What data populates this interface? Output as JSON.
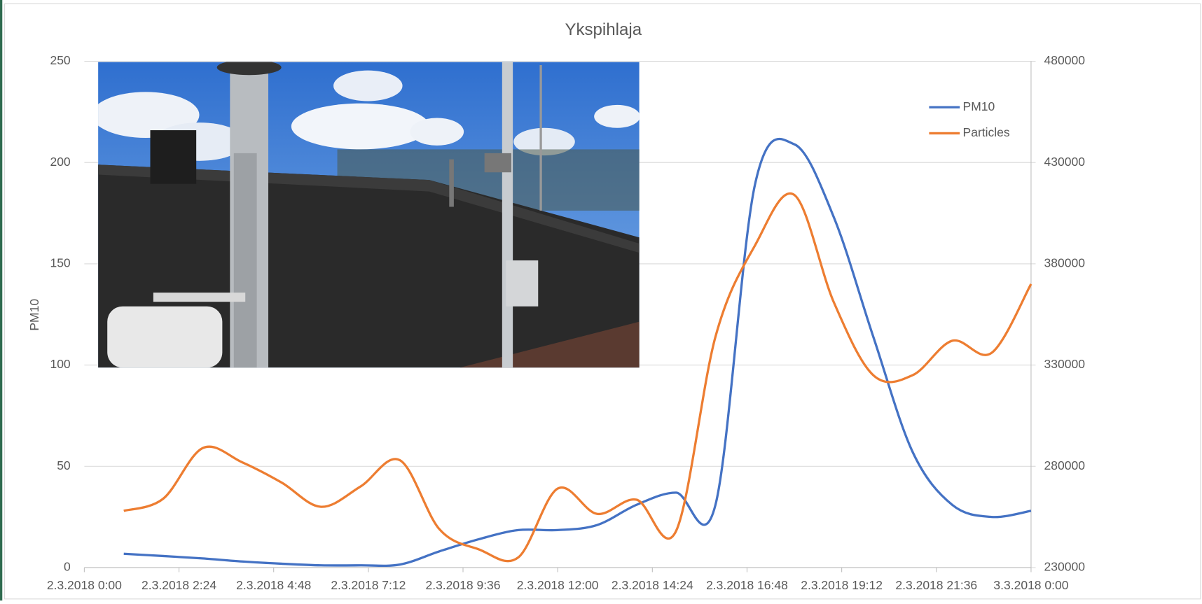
{
  "chart_data": {
    "type": "line",
    "title": "Ykspihlaja",
    "ylabel": "PM10",
    "x": [
      "2.3.2018 1:00",
      "2.3.2018 2:00",
      "2.3.2018 3:00",
      "2.3.2018 4:00",
      "2.3.2018 5:00",
      "2.3.2018 6:00",
      "2.3.2018 7:00",
      "2.3.2018 8:00",
      "2.3.2018 9:00",
      "2.3.2018 10:00",
      "2.3.2018 11:00",
      "2.3.2018 12:00",
      "2.3.2018 13:00",
      "2.3.2018 14:00",
      "2.3.2018 15:00",
      "2.3.2018 16:00",
      "2.3.2018 17:00",
      "2.3.2018 18:00",
      "2.3.2018 19:00",
      "2.3.2018 20:00",
      "2.3.2018 21:00",
      "2.3.2018 22:00",
      "2.3.2018 23:00",
      "3.3.2018 0:00"
    ],
    "series": [
      {
        "name": "PM10",
        "color": "#4472c4",
        "values": [
          6.8,
          5.7,
          4.5,
          3.0,
          1.9,
          1.1,
          1.1,
          1.5,
          8,
          14,
          18.5,
          18.5,
          21,
          31,
          37,
          31,
          189,
          209,
          173,
          114,
          57,
          31,
          25,
          28
        ]
      },
      {
        "name": "Particles",
        "color": "#ed7d31",
        "axis": "y2",
        "values": [
          258000,
          264000,
          289000,
          282000,
          272000,
          260000,
          270000,
          283000,
          249000,
          239000,
          235000,
          269000,
          256500,
          263500,
          248000,
          344000,
          389000,
          414000,
          361000,
          325000,
          325000,
          342000,
          336000,
          370000
        ]
      }
    ],
    "xlim": [
      "2.3.2018 0:00",
      "3.3.2018 0:00"
    ],
    "xticks": [
      "2.3.2018 0:00",
      "2.3.2018 2:24",
      "2.3.2018 4:48",
      "2.3.2018 7:12",
      "2.3.2018 9:36",
      "2.3.2018 12:00",
      "2.3.2018 14:24",
      "2.3.2018 16:48",
      "2.3.2018 19:12",
      "2.3.2018 21:36",
      "3.3.2018 0:00"
    ],
    "ylim": [
      0,
      250
    ],
    "yticks": [
      0,
      50,
      100,
      150,
      200,
      250
    ],
    "y2lim": [
      230000,
      480000
    ],
    "y2ticks": [
      230000,
      280000,
      330000,
      380000,
      430000,
      480000
    ],
    "grid": true,
    "legend": "upper right"
  }
}
